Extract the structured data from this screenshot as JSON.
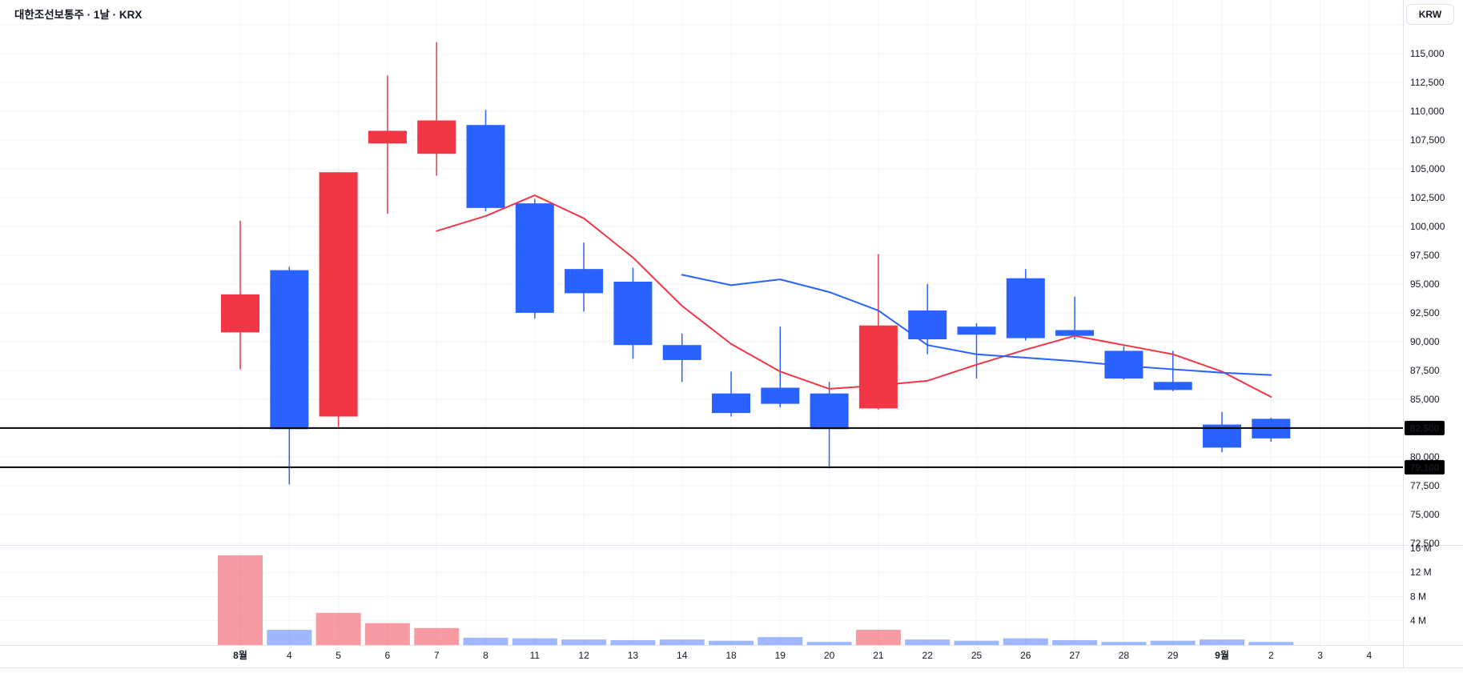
{
  "header": {
    "symbol_title": "대한조선보통주 · 1날 · KRX",
    "currency_button": "KRW"
  },
  "colors": {
    "up": "#f23645",
    "down": "#2962ff",
    "up_volume": "rgba(242,54,69,0.5)",
    "down_volume": "rgba(41,98,255,0.45)",
    "ma_fast": "#f23645",
    "ma_slow": "#2962ff",
    "grid": "#f0f3fa",
    "axis_border": "#e0e3eb",
    "text": "#131722",
    "price_line": "#000000",
    "tag_bg": "#000000",
    "tag_text": "#ffffff",
    "background": "#ffffff"
  },
  "chart_data": {
    "type": "candlestick",
    "title": "대한조선보통주 · 1날 · KRX",
    "symbol": "대한조선보통주",
    "interval": "1날",
    "exchange": "KRX",
    "currency": "KRW",
    "grid": true,
    "price_range": [
      72350,
      119650
    ],
    "volume_range_m": [
      0,
      16.5
    ],
    "x_labels": [
      {
        "label": "8월",
        "bold": true
      },
      {
        "label": "4",
        "bold": false
      },
      {
        "label": "5",
        "bold": false
      },
      {
        "label": "6",
        "bold": false
      },
      {
        "label": "7",
        "bold": false
      },
      {
        "label": "8",
        "bold": false
      },
      {
        "label": "11",
        "bold": false
      },
      {
        "label": "12",
        "bold": false
      },
      {
        "label": "13",
        "bold": false
      },
      {
        "label": "14",
        "bold": false
      },
      {
        "label": "18",
        "bold": false
      },
      {
        "label": "19",
        "bold": false
      },
      {
        "label": "20",
        "bold": false
      },
      {
        "label": "21",
        "bold": false
      },
      {
        "label": "22",
        "bold": false
      },
      {
        "label": "25",
        "bold": false
      },
      {
        "label": "26",
        "bold": false
      },
      {
        "label": "27",
        "bold": false
      },
      {
        "label": "28",
        "bold": false
      },
      {
        "label": "29",
        "bold": false
      },
      {
        "label": "9월",
        "bold": true
      },
      {
        "label": "2",
        "bold": false
      },
      {
        "label": "3",
        "bold": false
      },
      {
        "label": "4",
        "bold": false
      }
    ],
    "candles": [
      {
        "date": "8월",
        "dir": "up",
        "open": 90800,
        "high": 100500,
        "low": 87600,
        "close": 94100,
        "volume_m": 14.8
      },
      {
        "date": "4",
        "dir": "down",
        "open": 96200,
        "high": 96500,
        "low": 77600,
        "close": 82400,
        "volume_m": 2.5
      },
      {
        "date": "5",
        "dir": "up",
        "open": 83500,
        "high": 104700,
        "low": 82600,
        "close": 104700,
        "volume_m": 5.3
      },
      {
        "date": "6",
        "dir": "up",
        "open": 107200,
        "high": 113100,
        "low": 101100,
        "close": 108300,
        "volume_m": 3.6
      },
      {
        "date": "7",
        "dir": "up",
        "open": 106300,
        "high": 116000,
        "low": 104400,
        "close": 109200,
        "volume_m": 2.8
      },
      {
        "date": "8",
        "dir": "down",
        "open": 108800,
        "high": 110100,
        "low": 101300,
        "close": 101600,
        "volume_m": 1.2
      },
      {
        "date": "11",
        "dir": "down",
        "open": 102000,
        "high": 102400,
        "low": 92000,
        "close": 92500,
        "volume_m": 1.1
      },
      {
        "date": "12",
        "dir": "down",
        "open": 96300,
        "high": 98600,
        "low": 92600,
        "close": 94200,
        "volume_m": 0.9
      },
      {
        "date": "13",
        "dir": "down",
        "open": 95200,
        "high": 96400,
        "low": 88500,
        "close": 89700,
        "volume_m": 0.8
      },
      {
        "date": "14",
        "dir": "down",
        "open": 89700,
        "high": 90700,
        "low": 86500,
        "close": 88400,
        "volume_m": 0.9
      },
      {
        "date": "18",
        "dir": "down",
        "open": 85500,
        "high": 87400,
        "low": 83500,
        "close": 83800,
        "volume_m": 0.7
      },
      {
        "date": "19",
        "dir": "down",
        "open": 86000,
        "high": 91300,
        "low": 84300,
        "close": 84600,
        "volume_m": 1.3
      },
      {
        "date": "20",
        "dir": "down",
        "open": 85500,
        "high": 86500,
        "low": 79000,
        "close": 82400,
        "volume_m": 0.5
      },
      {
        "date": "21",
        "dir": "up",
        "open": 84200,
        "high": 97600,
        "low": 84100,
        "close": 91400,
        "volume_m": 2.5
      },
      {
        "date": "22",
        "dir": "down",
        "open": 92700,
        "high": 95000,
        "low": 88900,
        "close": 90200,
        "volume_m": 0.9
      },
      {
        "date": "25",
        "dir": "down",
        "open": 91300,
        "high": 91600,
        "low": 86800,
        "close": 90600,
        "volume_m": 0.7
      },
      {
        "date": "26",
        "dir": "down",
        "open": 95500,
        "high": 96300,
        "low": 90100,
        "close": 90300,
        "volume_m": 1.1
      },
      {
        "date": "27",
        "dir": "down",
        "open": 91000,
        "high": 93900,
        "low": 90200,
        "close": 90500,
        "volume_m": 0.8
      },
      {
        "date": "28",
        "dir": "down",
        "open": 89200,
        "high": 89600,
        "low": 86700,
        "close": 86800,
        "volume_m": 0.5
      },
      {
        "date": "29",
        "dir": "down",
        "open": 86500,
        "high": 89200,
        "low": 85700,
        "close": 85800,
        "volume_m": 0.7
      },
      {
        "date": "9월",
        "dir": "down",
        "open": 82800,
        "high": 83900,
        "low": 80400,
        "close": 80800,
        "volume_m": 0.9
      },
      {
        "date": "2",
        "dir": "down",
        "open": 83300,
        "high": 83400,
        "low": 81300,
        "close": 81600,
        "volume_m": 0.5
      }
    ],
    "ma_fast_red": {
      "start_index": 4,
      "values": [
        99600,
        100900,
        102700,
        100700,
        97300,
        93100,
        89800,
        87400,
        85900,
        86200,
        86600,
        88000,
        89300,
        90500,
        89700,
        88900,
        87400,
        85200
      ]
    },
    "ma_slow_blue": {
      "start_index": 9,
      "values": [
        95800,
        94900,
        95400,
        94300,
        92700,
        89700,
        88900,
        88600,
        88300,
        87900,
        87600,
        87300,
        87100
      ]
    },
    "price_axis_labels": [
      {
        "label": "115,000",
        "value": 115000
      },
      {
        "label": "112,500",
        "value": 112500
      },
      {
        "label": "110,000",
        "value": 110000
      },
      {
        "label": "107,500",
        "value": 107500
      },
      {
        "label": "105,000",
        "value": 105000
      },
      {
        "label": "102,500",
        "value": 102500
      },
      {
        "label": "100,000",
        "value": 100000
      },
      {
        "label": "97,500",
        "value": 97500
      },
      {
        "label": "95,000",
        "value": 95000
      },
      {
        "label": "92,500",
        "value": 92500
      },
      {
        "label": "90,000",
        "value": 90000
      },
      {
        "label": "87,500",
        "value": 87500
      },
      {
        "label": "85,000",
        "value": 85000
      },
      {
        "label": "80,000",
        "value": 80000
      },
      {
        "label": "77,500",
        "value": 77500
      },
      {
        "label": "75,000",
        "value": 75000
      },
      {
        "label": "72,500",
        "value": 72500
      }
    ],
    "volume_axis_labels": [
      {
        "label": "16 M",
        "value": 16
      },
      {
        "label": "12 M",
        "value": 12
      },
      {
        "label": "8 M",
        "value": 8
      },
      {
        "label": "4 M",
        "value": 4
      }
    ],
    "price_lines": [
      {
        "label": "82,500",
        "value": 82500
      },
      {
        "label": "79,100",
        "value": 79100
      }
    ]
  }
}
